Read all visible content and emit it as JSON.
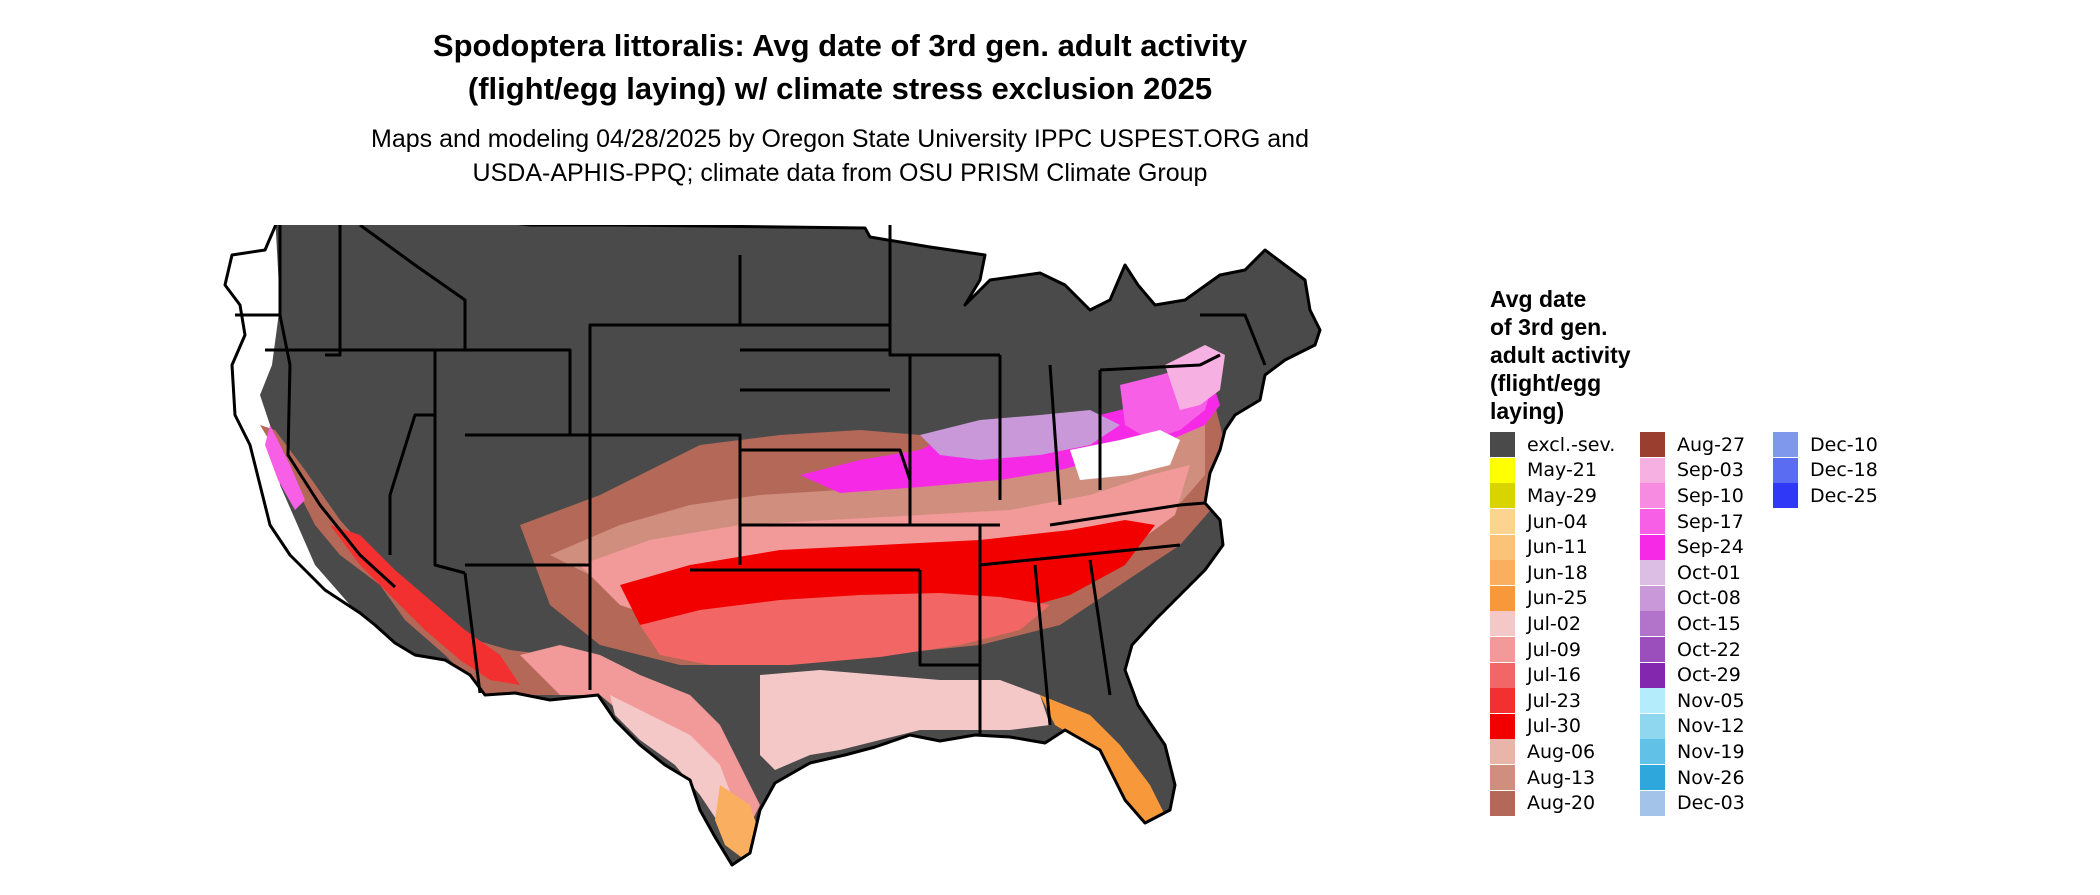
{
  "header": {
    "title_line1": "Spodoptera littoralis: Avg date of 3rd gen. adult activity",
    "title_line2": "(flight/egg laying) w/ climate stress exclusion 2025",
    "subtitle_line1": "Maps and modeling 04/28/2025 by Oregon State University IPPC USPEST.ORG and",
    "subtitle_line2": "USDA-APHIS-PPQ; climate data from OSU PRISM Climate Group"
  },
  "map": {
    "region": "Contiguous United States",
    "state_outline_color": "#000000",
    "excluded_color": "#4a4a4a",
    "no_data_color": "#ffffff"
  },
  "legend": {
    "title_lines": [
      "Avg date",
      "of 3rd gen.",
      "adult activity",
      "(flight/egg",
      "laying)"
    ],
    "columns": [
      [
        {
          "label": "excl.-sev.",
          "color": "#4a4a4a"
        },
        {
          "label": "May-21",
          "color": "#ffff00"
        },
        {
          "label": "May-29",
          "color": "#d9d400"
        },
        {
          "label": "Jun-04",
          "color": "#fcd48f"
        },
        {
          "label": "Jun-11",
          "color": "#fbc27a"
        },
        {
          "label": "Jun-18",
          "color": "#f9ae60"
        },
        {
          "label": "Jun-25",
          "color": "#f7983a"
        },
        {
          "label": "Jul-02",
          "color": "#f5c8c8"
        },
        {
          "label": "Jul-09",
          "color": "#f29a9a"
        },
        {
          "label": "Jul-16",
          "color": "#f26666"
        },
        {
          "label": "Jul-23",
          "color": "#f23030"
        },
        {
          "label": "Jul-30",
          "color": "#f20000"
        },
        {
          "label": "Aug-06",
          "color": "#e8b5a8"
        },
        {
          "label": "Aug-13",
          "color": "#cf8e7e"
        },
        {
          "label": "Aug-20",
          "color": "#b46858"
        }
      ],
      [
        {
          "label": "Aug-27",
          "color": "#9a3f30"
        },
        {
          "label": "Sep-03",
          "color": "#f7b0e2"
        },
        {
          "label": "Sep-10",
          "color": "#f78be2"
        },
        {
          "label": "Sep-17",
          "color": "#f760e6"
        },
        {
          "label": "Sep-24",
          "color": "#f62ae6"
        },
        {
          "label": "Oct-01",
          "color": "#dcbde4"
        },
        {
          "label": "Oct-08",
          "color": "#c898d8"
        },
        {
          "label": "Oct-15",
          "color": "#b174ca"
        },
        {
          "label": "Oct-22",
          "color": "#9a4fbd"
        },
        {
          "label": "Oct-29",
          "color": "#8227ae"
        },
        {
          "label": "Nov-05",
          "color": "#b5ecfb"
        },
        {
          "label": "Nov-12",
          "color": "#8fd6ef"
        },
        {
          "label": "Nov-19",
          "color": "#62c1e6"
        },
        {
          "label": "Nov-26",
          "color": "#2ea8dc"
        },
        {
          "label": "Dec-03",
          "color": "#a3c3e8"
        }
      ],
      [
        {
          "label": "Dec-10",
          "color": "#7f98ec"
        },
        {
          "label": "Dec-18",
          "color": "#5a6cf2"
        },
        {
          "label": "Dec-25",
          "color": "#2f38f7"
        }
      ]
    ]
  }
}
